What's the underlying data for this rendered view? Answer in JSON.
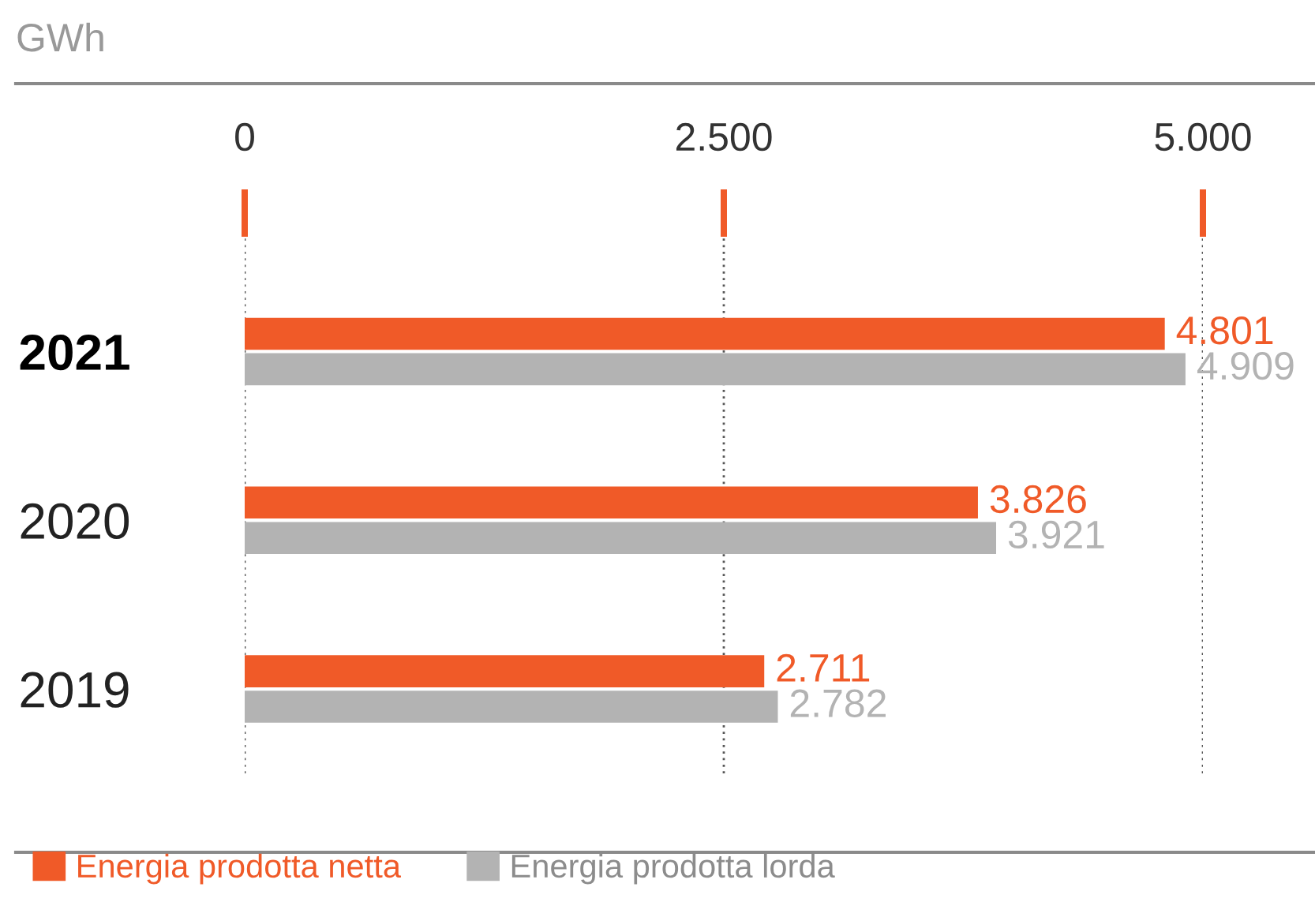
{
  "chart_data": {
    "type": "bar",
    "orientation": "horizontal",
    "xlabel": "GWh",
    "categories": [
      "2021",
      "2020",
      "2019"
    ],
    "series": [
      {
        "name": "Energia prodotta netta",
        "color": "#f05a28",
        "values": [
          4801,
          3826,
          2711
        ],
        "value_labels": [
          "4.801",
          "3.826",
          "2.711"
        ]
      },
      {
        "name": "Energia prodotta lorda",
        "color": "#b3b3b3",
        "values": [
          4909,
          3921,
          2782
        ],
        "value_labels": [
          "4.909",
          "3.921",
          "2.782"
        ]
      }
    ],
    "xlim": [
      0,
      5000
    ],
    "xticks": [
      0,
      {
        "value": 2500,
        "label": "2.500"
      },
      {
        "value": 5000,
        "label": "5.000"
      }
    ],
    "grid": "x",
    "legend": "bottom"
  }
}
